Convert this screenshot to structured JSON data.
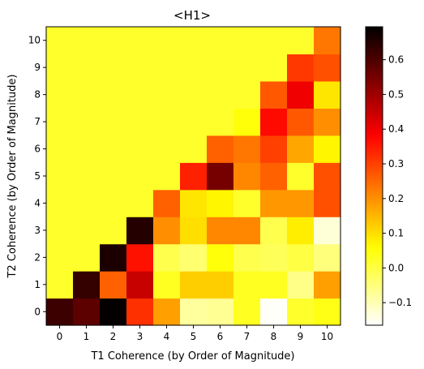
{
  "chart_data": {
    "type": "heatmap",
    "title": "<H1>",
    "xlabel": "T1 Coherence (by Order of Magnitude)",
    "ylabel": "T2 Coherence (by Order of Magnitude)",
    "x": [
      0,
      1,
      2,
      3,
      4,
      5,
      6,
      7,
      8,
      9,
      10
    ],
    "y": [
      0,
      1,
      2,
      3,
      4,
      5,
      6,
      7,
      8,
      9,
      10
    ],
    "colormap": "hot_r",
    "vmin": -0.165,
    "vmax": 0.695,
    "colorbar_ticks": [
      -0.1,
      0.0,
      0.1,
      0.2,
      0.3,
      0.4,
      0.5,
      0.6
    ],
    "colorbar_tick_labels": [
      "−0.1",
      "0.0",
      "0.1",
      "0.2",
      "0.3",
      "0.4",
      "0.5",
      "0.6"
    ],
    "x_tick_labels": [
      "0",
      "1",
      "2",
      "3",
      "4",
      "5",
      "6",
      "7",
      "8",
      "9",
      "10"
    ],
    "y_tick_labels": [
      "0",
      "1",
      "2",
      "3",
      "4",
      "5",
      "6",
      "7",
      "8",
      "9",
      "10"
    ],
    "values": [
      [
        0.62,
        0.58,
        0.69,
        0.32,
        0.18,
        -0.08,
        -0.07,
        0.03,
        -0.16,
        0.02,
        0.04
      ],
      [
        0.02,
        0.63,
        0.26,
        0.45,
        0.03,
        0.12,
        0.12,
        0.03,
        0.03,
        -0.06,
        0.18
      ],
      [
        0.02,
        0.02,
        0.66,
        0.36,
        -0.01,
        -0.04,
        0.05,
        -0.01,
        -0.02,
        0.0,
        -0.05
      ],
      [
        0.02,
        0.02,
        0.02,
        0.65,
        0.2,
        0.1,
        0.21,
        0.21,
        -0.01,
        0.08,
        -0.13
      ],
      [
        0.02,
        0.02,
        0.02,
        0.02,
        0.26,
        0.09,
        0.07,
        0.02,
        0.19,
        0.19,
        0.28
      ],
      [
        0.02,
        0.02,
        0.02,
        0.02,
        0.02,
        0.34,
        0.55,
        0.21,
        0.26,
        0.02,
        0.28
      ],
      [
        0.02,
        0.02,
        0.02,
        0.02,
        0.02,
        0.02,
        0.26,
        0.23,
        0.3,
        0.17,
        0.07
      ],
      [
        0.02,
        0.02,
        0.02,
        0.02,
        0.02,
        0.02,
        0.02,
        0.05,
        0.37,
        0.27,
        0.2
      ],
      [
        0.02,
        0.02,
        0.02,
        0.02,
        0.02,
        0.02,
        0.02,
        0.02,
        0.27,
        0.4,
        0.09
      ],
      [
        0.02,
        0.02,
        0.02,
        0.02,
        0.02,
        0.02,
        0.02,
        0.02,
        0.02,
        0.31,
        0.28
      ],
      [
        0.02,
        0.02,
        0.02,
        0.02,
        0.02,
        0.02,
        0.02,
        0.02,
        0.02,
        0.02,
        0.23
      ]
    ]
  }
}
